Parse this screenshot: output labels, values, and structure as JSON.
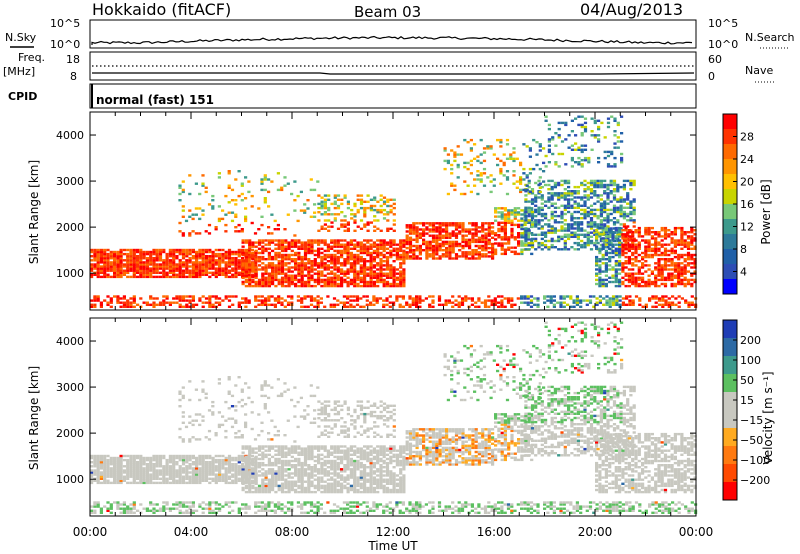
{
  "header": {
    "title": "Hokkaido (fitACF)",
    "beam": "Beam 03",
    "date": "04/Aug/2013"
  },
  "noise_panel": {
    "left_label": "N.Sky",
    "right_label": "N.Search",
    "left_ticks": [
      "10^5",
      "10^0"
    ],
    "right_ticks": [
      "10^5",
      "10^0"
    ]
  },
  "freq_panel": {
    "left_label_1": "Freq.",
    "left_label_2": "[MHz]",
    "right_label": "Nave",
    "left_ticks": [
      "18",
      "8"
    ],
    "right_ticks": [
      "60",
      "0"
    ]
  },
  "cpid_panel": {
    "label": "CPID",
    "mode": "normal (fast) 151"
  },
  "chart_data": [
    {
      "type": "heatmap",
      "name": "power",
      "ylabel": "Slant Range [km]",
      "xlabel": "Time UT",
      "x_ticks": [
        "00:00",
        "04:00",
        "08:00",
        "12:00",
        "16:00",
        "20:00",
        "00:00"
      ],
      "xlim_hours": [
        0,
        24
      ],
      "ylim": [
        200,
        4500
      ],
      "y_ticks": [
        1000,
        2000,
        3000,
        4000
      ],
      "colorbar": {
        "label": "Power [dB]",
        "ticks": [
          "28",
          "24",
          "20",
          "16",
          "12",
          "8",
          "4"
        ],
        "colors": [
          "#ff0000",
          "#ff3300",
          "#ff6a00",
          "#ff9500",
          "#ffc000",
          "#c8d400",
          "#78c878",
          "#3d9a8c",
          "#2d7a9a",
          "#2060a8",
          "#2d4db5",
          "#0000ff"
        ]
      }
    },
    {
      "type": "heatmap",
      "name": "velocity",
      "ylabel": "Slant Range [km]",
      "xlabel": "Time UT",
      "x_ticks": [
        "00:00",
        "04:00",
        "08:00",
        "12:00",
        "16:00",
        "20:00",
        "00:00"
      ],
      "xlim_hours": [
        0,
        24
      ],
      "ylim": [
        200,
        4500
      ],
      "y_ticks": [
        1000,
        2000,
        3000,
        4000
      ],
      "colorbar": {
        "label": "Velocity [m s⁻¹]",
        "ticks": [
          "200",
          "100",
          "50",
          "15",
          "−15",
          "−50",
          "−100",
          "−200"
        ],
        "colors": [
          "#1f3db5",
          "#2d6aa5",
          "#3d9a8c",
          "#5cc060",
          "#c8c8c0",
          "#c8c8c0",
          "#ffaa20",
          "#ff7a10",
          "#ff4a00",
          "#ff0000"
        ]
      }
    }
  ]
}
